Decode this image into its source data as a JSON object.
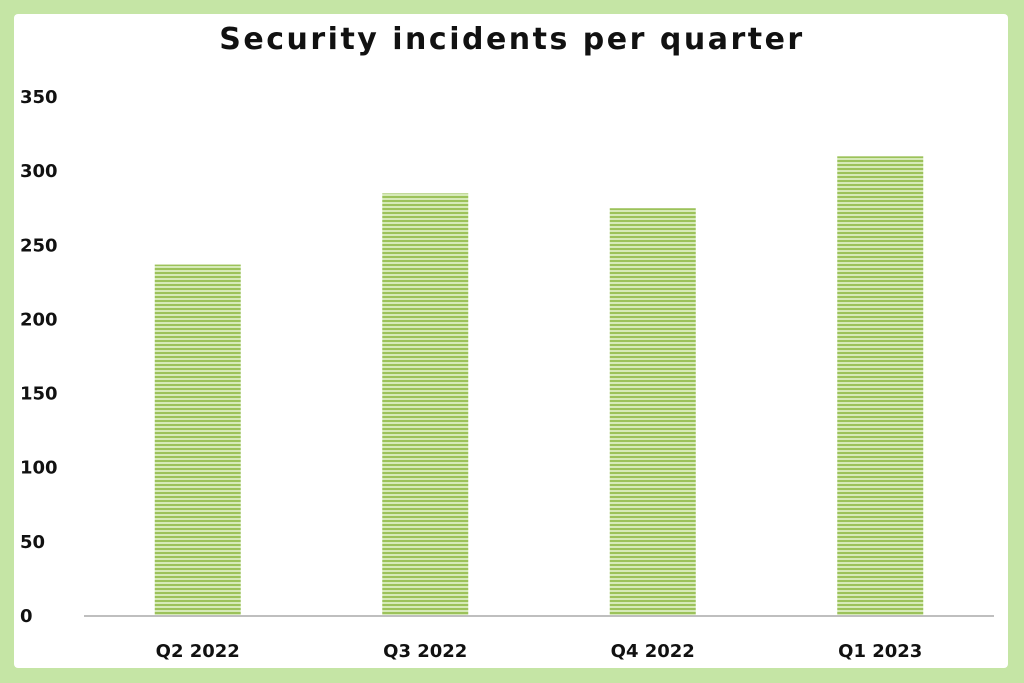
{
  "chart_data": {
    "type": "bar",
    "title": "Security incidents per quarter",
    "xlabel": "",
    "ylabel": "",
    "categories": [
      "Q2 2022",
      "Q3 2022",
      "Q4 2022",
      "Q1 2023"
    ],
    "values": [
      237,
      285,
      275,
      310
    ],
    "ylim": [
      0,
      350
    ],
    "yticks": [
      "0",
      "50",
      "100",
      "150",
      "200",
      "250",
      "300",
      "350"
    ],
    "grid": false,
    "legend": "none",
    "bar_color": "#9cc25a",
    "bar_pattern": "horizontal stripes"
  },
  "colors": {
    "frame": "#c5e5a5",
    "background": "#ffffff",
    "bar": "#9cc25a",
    "bar_stripe": "#d6eab8",
    "axis": "#bfbfbf"
  }
}
